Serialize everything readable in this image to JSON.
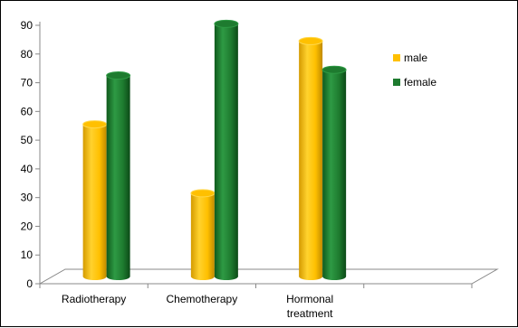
{
  "chart_data": {
    "type": "bar",
    "title": "",
    "xlabel": "",
    "ylabel": "",
    "ylim": [
      0,
      90
    ],
    "yticks": [
      0,
      10,
      20,
      30,
      40,
      50,
      60,
      70,
      80,
      90
    ],
    "categories": [
      [
        "Radiotherapy"
      ],
      [
        "Chemotherapy"
      ],
      [
        "Hormonal",
        "treatment"
      ]
    ],
    "series": [
      {
        "name": "male",
        "values": [
          53,
          29,
          82
        ],
        "color": "#FFC000"
      },
      {
        "name": "female",
        "values": [
          70,
          88,
          72
        ],
        "color": "#1E7B2F"
      }
    ],
    "legend_position": "right",
    "grid": false,
    "style": "3d-cylinder"
  }
}
